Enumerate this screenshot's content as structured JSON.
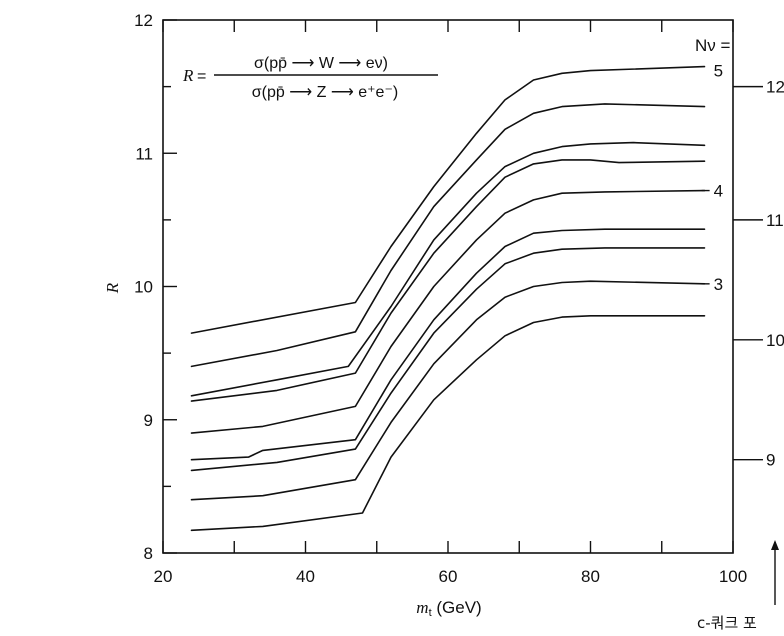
{
  "chart_data": {
    "type": "line",
    "title": "",
    "xlabel": "m_t (GeV)",
    "xlabel_main": "m",
    "xlabel_sub": "t",
    "xlabel_unit": " (GeV)",
    "ylabel": "R",
    "xlim": [
      20,
      100
    ],
    "ylim": [
      8,
      12
    ],
    "x_ticks": [
      20,
      40,
      60,
      80,
      100
    ],
    "y_ticks": [
      8,
      9,
      10,
      11,
      12
    ],
    "grid": false,
    "formula": {
      "lhs": "R",
      "eq": "=",
      "numerator": "σ(pp̄ ⟶ W ⟶ eν)",
      "denominator": "σ(pp̄ ⟶ Z ⟶ e⁺e⁻)"
    },
    "right_axis": {
      "label": "Nν =",
      "ticks": [
        {
          "label": "12",
          "y": 11.5
        },
        {
          "label": "11",
          "y": 10.5
        },
        {
          "label": "10",
          "y": 9.6
        },
        {
          "label": "9",
          "y": 8.7
        }
      ]
    },
    "curve_labels": [
      {
        "text": "5",
        "x": 97,
        "y": 11.62
      },
      {
        "text": "4",
        "x": 97,
        "y": 10.72
      },
      {
        "text": "3",
        "x": 97,
        "y": 10.02
      }
    ],
    "footnote": "c-쿼크 포",
    "series": [
      {
        "x": [
          24,
          47,
          52,
          58,
          64,
          68,
          72,
          76,
          80,
          96
        ],
        "y": [
          9.65,
          9.88,
          10.3,
          10.75,
          11.15,
          11.4,
          11.55,
          11.6,
          11.62,
          11.65
        ]
      },
      {
        "x": [
          24,
          36,
          47,
          52,
          58,
          64,
          68,
          72,
          76,
          82,
          96
        ],
        "y": [
          9.4,
          9.52,
          9.66,
          10.12,
          10.6,
          10.95,
          11.18,
          11.3,
          11.35,
          11.37,
          11.35
        ]
      },
      {
        "x": [
          24,
          36,
          46,
          52,
          58,
          64,
          68,
          72,
          76,
          80,
          86,
          96
        ],
        "y": [
          9.18,
          9.3,
          9.4,
          9.85,
          10.35,
          10.7,
          10.9,
          11.0,
          11.05,
          11.07,
          11.08,
          11.06
        ]
      },
      {
        "x": [
          24,
          36,
          47,
          52,
          58,
          64,
          68,
          72,
          76,
          80,
          84,
          96
        ],
        "y": [
          9.14,
          9.22,
          9.35,
          9.8,
          10.25,
          10.6,
          10.82,
          10.92,
          10.95,
          10.95,
          10.93,
          10.94
        ]
      },
      {
        "x": [
          24,
          34,
          47,
          52,
          58,
          64,
          68,
          72,
          76,
          82,
          96
        ],
        "y": [
          8.9,
          8.95,
          9.1,
          9.55,
          10.0,
          10.35,
          10.55,
          10.65,
          10.7,
          10.71,
          10.72
        ]
      },
      {
        "x": [
          24,
          32,
          34,
          47,
          52,
          58,
          64,
          68,
          72,
          76,
          82,
          96
        ],
        "y": [
          8.7,
          8.72,
          8.77,
          8.85,
          9.3,
          9.75,
          10.1,
          10.3,
          10.4,
          10.42,
          10.43,
          10.43
        ]
      },
      {
        "x": [
          24,
          36,
          47,
          52,
          58,
          64,
          68,
          72,
          76,
          82,
          96
        ],
        "y": [
          8.62,
          8.68,
          8.78,
          9.2,
          9.65,
          9.98,
          10.17,
          10.25,
          10.28,
          10.29,
          10.29
        ]
      },
      {
        "x": [
          24,
          34,
          47,
          52,
          58,
          64,
          68,
          72,
          76,
          80,
          96
        ],
        "y": [
          8.4,
          8.43,
          8.55,
          8.98,
          9.42,
          9.75,
          9.92,
          10.0,
          10.03,
          10.04,
          10.02
        ]
      },
      {
        "x": [
          24,
          34,
          48,
          52,
          58,
          64,
          68,
          72,
          76,
          80,
          96
        ],
        "y": [
          8.17,
          8.2,
          8.3,
          8.72,
          9.15,
          9.45,
          9.63,
          9.73,
          9.77,
          9.78,
          9.78
        ]
      }
    ]
  }
}
